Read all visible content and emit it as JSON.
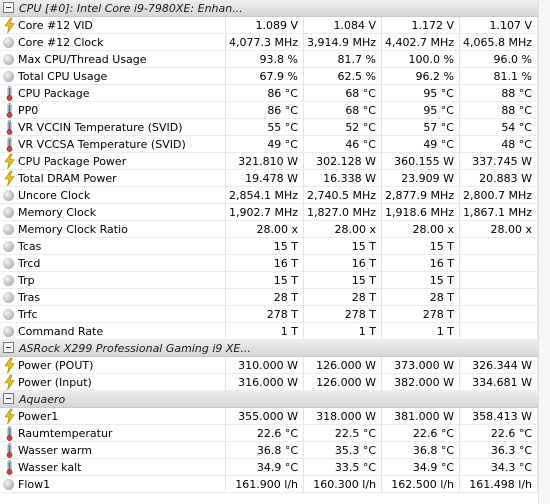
{
  "sections": [
    {
      "title": "CPU [#0]: Intel Core i9-7980XE: Enhan...",
      "rows": [
        {
          "icon": "bolt-icon",
          "label": "Core #12 VID",
          "values": [
            "1.089 V",
            "1.084 V",
            "1.172 V",
            "1.107 V"
          ]
        },
        {
          "icon": "circle-gauge-icon",
          "label": "Core #12 Clock",
          "values": [
            "4,077.3 MHz",
            "3,914.9 MHz",
            "4,402.7 MHz",
            "4,065.8 MHz"
          ]
        },
        {
          "icon": "circle-gauge-icon",
          "label": "Max CPU/Thread Usage",
          "values": [
            "93.8 %",
            "81.7 %",
            "100.0 %",
            "96.0 %"
          ]
        },
        {
          "icon": "circle-gauge-icon",
          "label": "Total CPU Usage",
          "values": [
            "67.9 %",
            "62.5 %",
            "96.2 %",
            "81.1 %"
          ]
        },
        {
          "icon": "thermometer-icon",
          "label": "CPU Package",
          "values": [
            "86 °C",
            "68 °C",
            "95 °C",
            "88 °C"
          ]
        },
        {
          "icon": "thermometer-icon",
          "label": "PP0",
          "values": [
            "86 °C",
            "68 °C",
            "95 °C",
            "88 °C"
          ]
        },
        {
          "icon": "thermometer-icon",
          "label": "VR VCCIN Temperature (SVID)",
          "values": [
            "55 °C",
            "52 °C",
            "57 °C",
            "54 °C"
          ]
        },
        {
          "icon": "thermometer-icon",
          "label": "VR VCCSA Temperature (SVID)",
          "values": [
            "49 °C",
            "46 °C",
            "49 °C",
            "48 °C"
          ]
        },
        {
          "icon": "bolt-icon",
          "label": "CPU Package Power",
          "values": [
            "321.810 W",
            "302.128 W",
            "360.155 W",
            "337.745 W"
          ]
        },
        {
          "icon": "bolt-icon",
          "label": "Total DRAM Power",
          "values": [
            "19.478 W",
            "16.338 W",
            "23.909 W",
            "20.883 W"
          ]
        },
        {
          "icon": "circle-gauge-icon",
          "label": "Uncore Clock",
          "values": [
            "2,854.1 MHz",
            "2,740.5 MHz",
            "2,877.9 MHz",
            "2,800.7 MHz"
          ]
        },
        {
          "icon": "circle-gauge-icon",
          "label": "Memory Clock",
          "values": [
            "1,902.7 MHz",
            "1,827.0 MHz",
            "1,918.6 MHz",
            "1,867.1 MHz"
          ]
        },
        {
          "icon": "circle-gauge-icon",
          "label": "Memory Clock Ratio",
          "values": [
            "28.00 x",
            "28.00 x",
            "28.00 x",
            "28.00 x"
          ]
        },
        {
          "icon": "circle-gauge-icon",
          "label": "Tcas",
          "values": [
            "15 T",
            "15 T",
            "15 T",
            ""
          ]
        },
        {
          "icon": "circle-gauge-icon",
          "label": "Trcd",
          "values": [
            "16 T",
            "16 T",
            "16 T",
            ""
          ]
        },
        {
          "icon": "circle-gauge-icon",
          "label": "Trp",
          "values": [
            "15 T",
            "15 T",
            "15 T",
            ""
          ]
        },
        {
          "icon": "circle-gauge-icon",
          "label": "Tras",
          "values": [
            "28 T",
            "28 T",
            "28 T",
            ""
          ]
        },
        {
          "icon": "circle-gauge-icon",
          "label": "Trfc",
          "values": [
            "278 T",
            "278 T",
            "278 T",
            ""
          ]
        },
        {
          "icon": "circle-gauge-icon",
          "label": "Command Rate",
          "values": [
            "1 T",
            "1 T",
            "1 T",
            ""
          ]
        }
      ]
    },
    {
      "title": "ASRock X299 Professional Gaming i9 XE...",
      "rows": [
        {
          "icon": "bolt-icon",
          "label": "Power (POUT)",
          "values": [
            "310.000 W",
            "126.000 W",
            "373.000 W",
            "326.344 W"
          ]
        },
        {
          "icon": "bolt-icon",
          "label": "Power (Input)",
          "values": [
            "316.000 W",
            "126.000 W",
            "382.000 W",
            "334.681 W"
          ]
        }
      ]
    },
    {
      "title": "Aquaero",
      "rows": [
        {
          "icon": "bolt-icon",
          "label": "Power1",
          "values": [
            "355.000 W",
            "318.000 W",
            "381.000 W",
            "358.413 W"
          ]
        },
        {
          "icon": "thermometer-icon",
          "label": "Raumtemperatur",
          "values": [
            "22.6 °C",
            "22.5 °C",
            "22.6 °C",
            "22.6 °C"
          ]
        },
        {
          "icon": "thermometer-icon",
          "label": "Wasser warm",
          "values": [
            "36.8 °C",
            "35.3 °C",
            "36.8 °C",
            "36.3 °C"
          ]
        },
        {
          "icon": "thermometer-icon",
          "label": "Wasser kalt",
          "values": [
            "34.9 °C",
            "33.5 °C",
            "34.9 °C",
            "34.3 °C"
          ]
        },
        {
          "icon": "circle-gauge-icon",
          "label": "Flow1",
          "values": [
            "161.900 l/h",
            "160.300 l/h",
            "162.500 l/h",
            "161.498 l/h"
          ]
        }
      ]
    }
  ],
  "colors": {
    "bolt": "#f2c200",
    "thermometer_top": "#3f73c4",
    "thermometer_bottom": "#e23b2e"
  }
}
